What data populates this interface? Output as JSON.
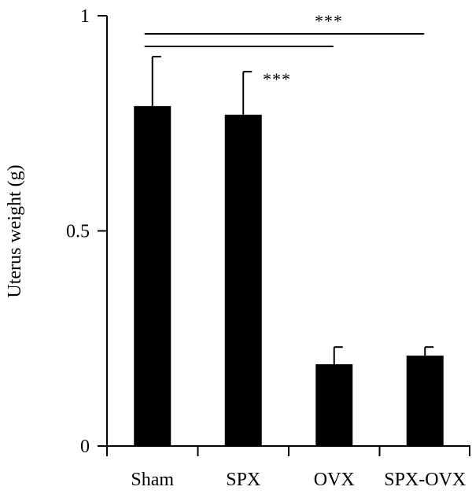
{
  "chart_data": {
    "type": "bar",
    "title": "",
    "xlabel": "",
    "ylabel": "Uterus weight (g)",
    "categories": [
      "Sham",
      "SPX",
      "OVX",
      "SPX-OVX"
    ],
    "values": [
      0.79,
      0.77,
      0.19,
      0.21
    ],
    "error_upper": [
      0.905,
      0.87,
      0.23,
      0.23
    ],
    "ylim": [
      0,
      1
    ],
    "yticks": [
      0,
      0.5,
      1
    ],
    "ytick_labels": [
      "0",
      "0.5",
      "1"
    ],
    "bar_color": "#000000",
    "grid": false,
    "legend": "none",
    "significance": [
      {
        "from": 0,
        "to": 3,
        "label": "***"
      },
      {
        "from": 0,
        "to": 2,
        "label": "***"
      }
    ]
  }
}
